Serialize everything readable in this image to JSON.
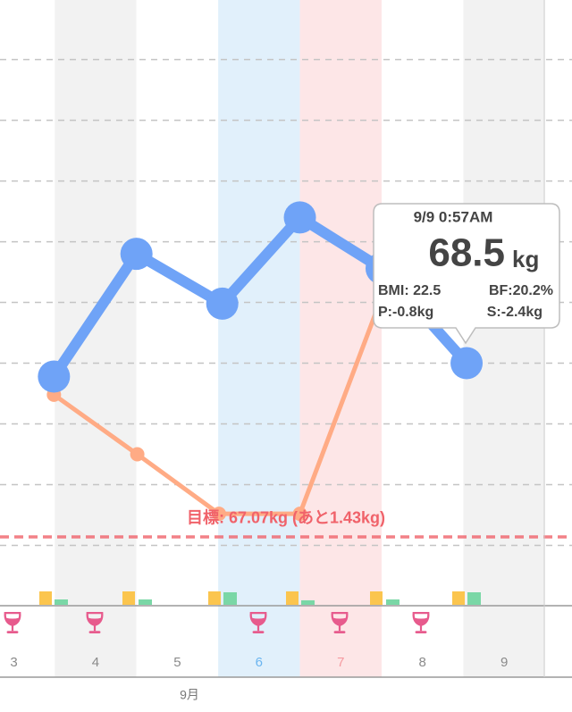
{
  "chart_data": {
    "type": "line",
    "categories": [
      "3",
      "4",
      "5",
      "6",
      "7",
      "8",
      "9"
    ],
    "category_colors": [
      "#8a8a8a",
      "#8a8a8a",
      "#8a8a8a",
      "#6bb5f0",
      "#f59aa0",
      "#8a8a8a",
      "#8a8a8a"
    ],
    "band_colors": [
      "#ffffff",
      "#f2f2f2",
      "#ffffff",
      "#e1f0fb",
      "#fde6e7",
      "#ffffff",
      "#f2f2f2"
    ],
    "month_label": "9月",
    "series": [
      {
        "color": "#ffab85",
        "x": [
          3.99,
          5.01,
          6.01,
          7.0,
          8.01
        ],
        "values": [
          68.24,
          67.75,
          67.26,
          67.26,
          69.06
        ]
      },
      {
        "color": "#6fa3f7",
        "x": [
          3.99,
          5.0,
          6.05,
          7.0,
          8.0,
          9.04
        ],
        "values": [
          68.39,
          69.4,
          68.99,
          69.7,
          69.28,
          68.5
        ]
      }
    ],
    "xlim": [
      3.33,
      10.33
    ],
    "ylim": [
      66.93,
      71.49
    ],
    "yticks": [
      67,
      67.5,
      68,
      68.5,
      69,
      69.5,
      70,
      70.5,
      71
    ],
    "grid": true,
    "goal": {
      "value": 67.07,
      "label": "目標: 67.07kg (あと1.43kg)",
      "color": "#f0626a"
    },
    "tooltip": {
      "date": "9/9 0:57AM",
      "value": "68.5",
      "unit": "kg",
      "bmi": "BMI: 22.5",
      "bf": "BF:20.2%",
      "p": "P:-0.8kg",
      "s": "S:-2.4kg"
    }
  }
}
